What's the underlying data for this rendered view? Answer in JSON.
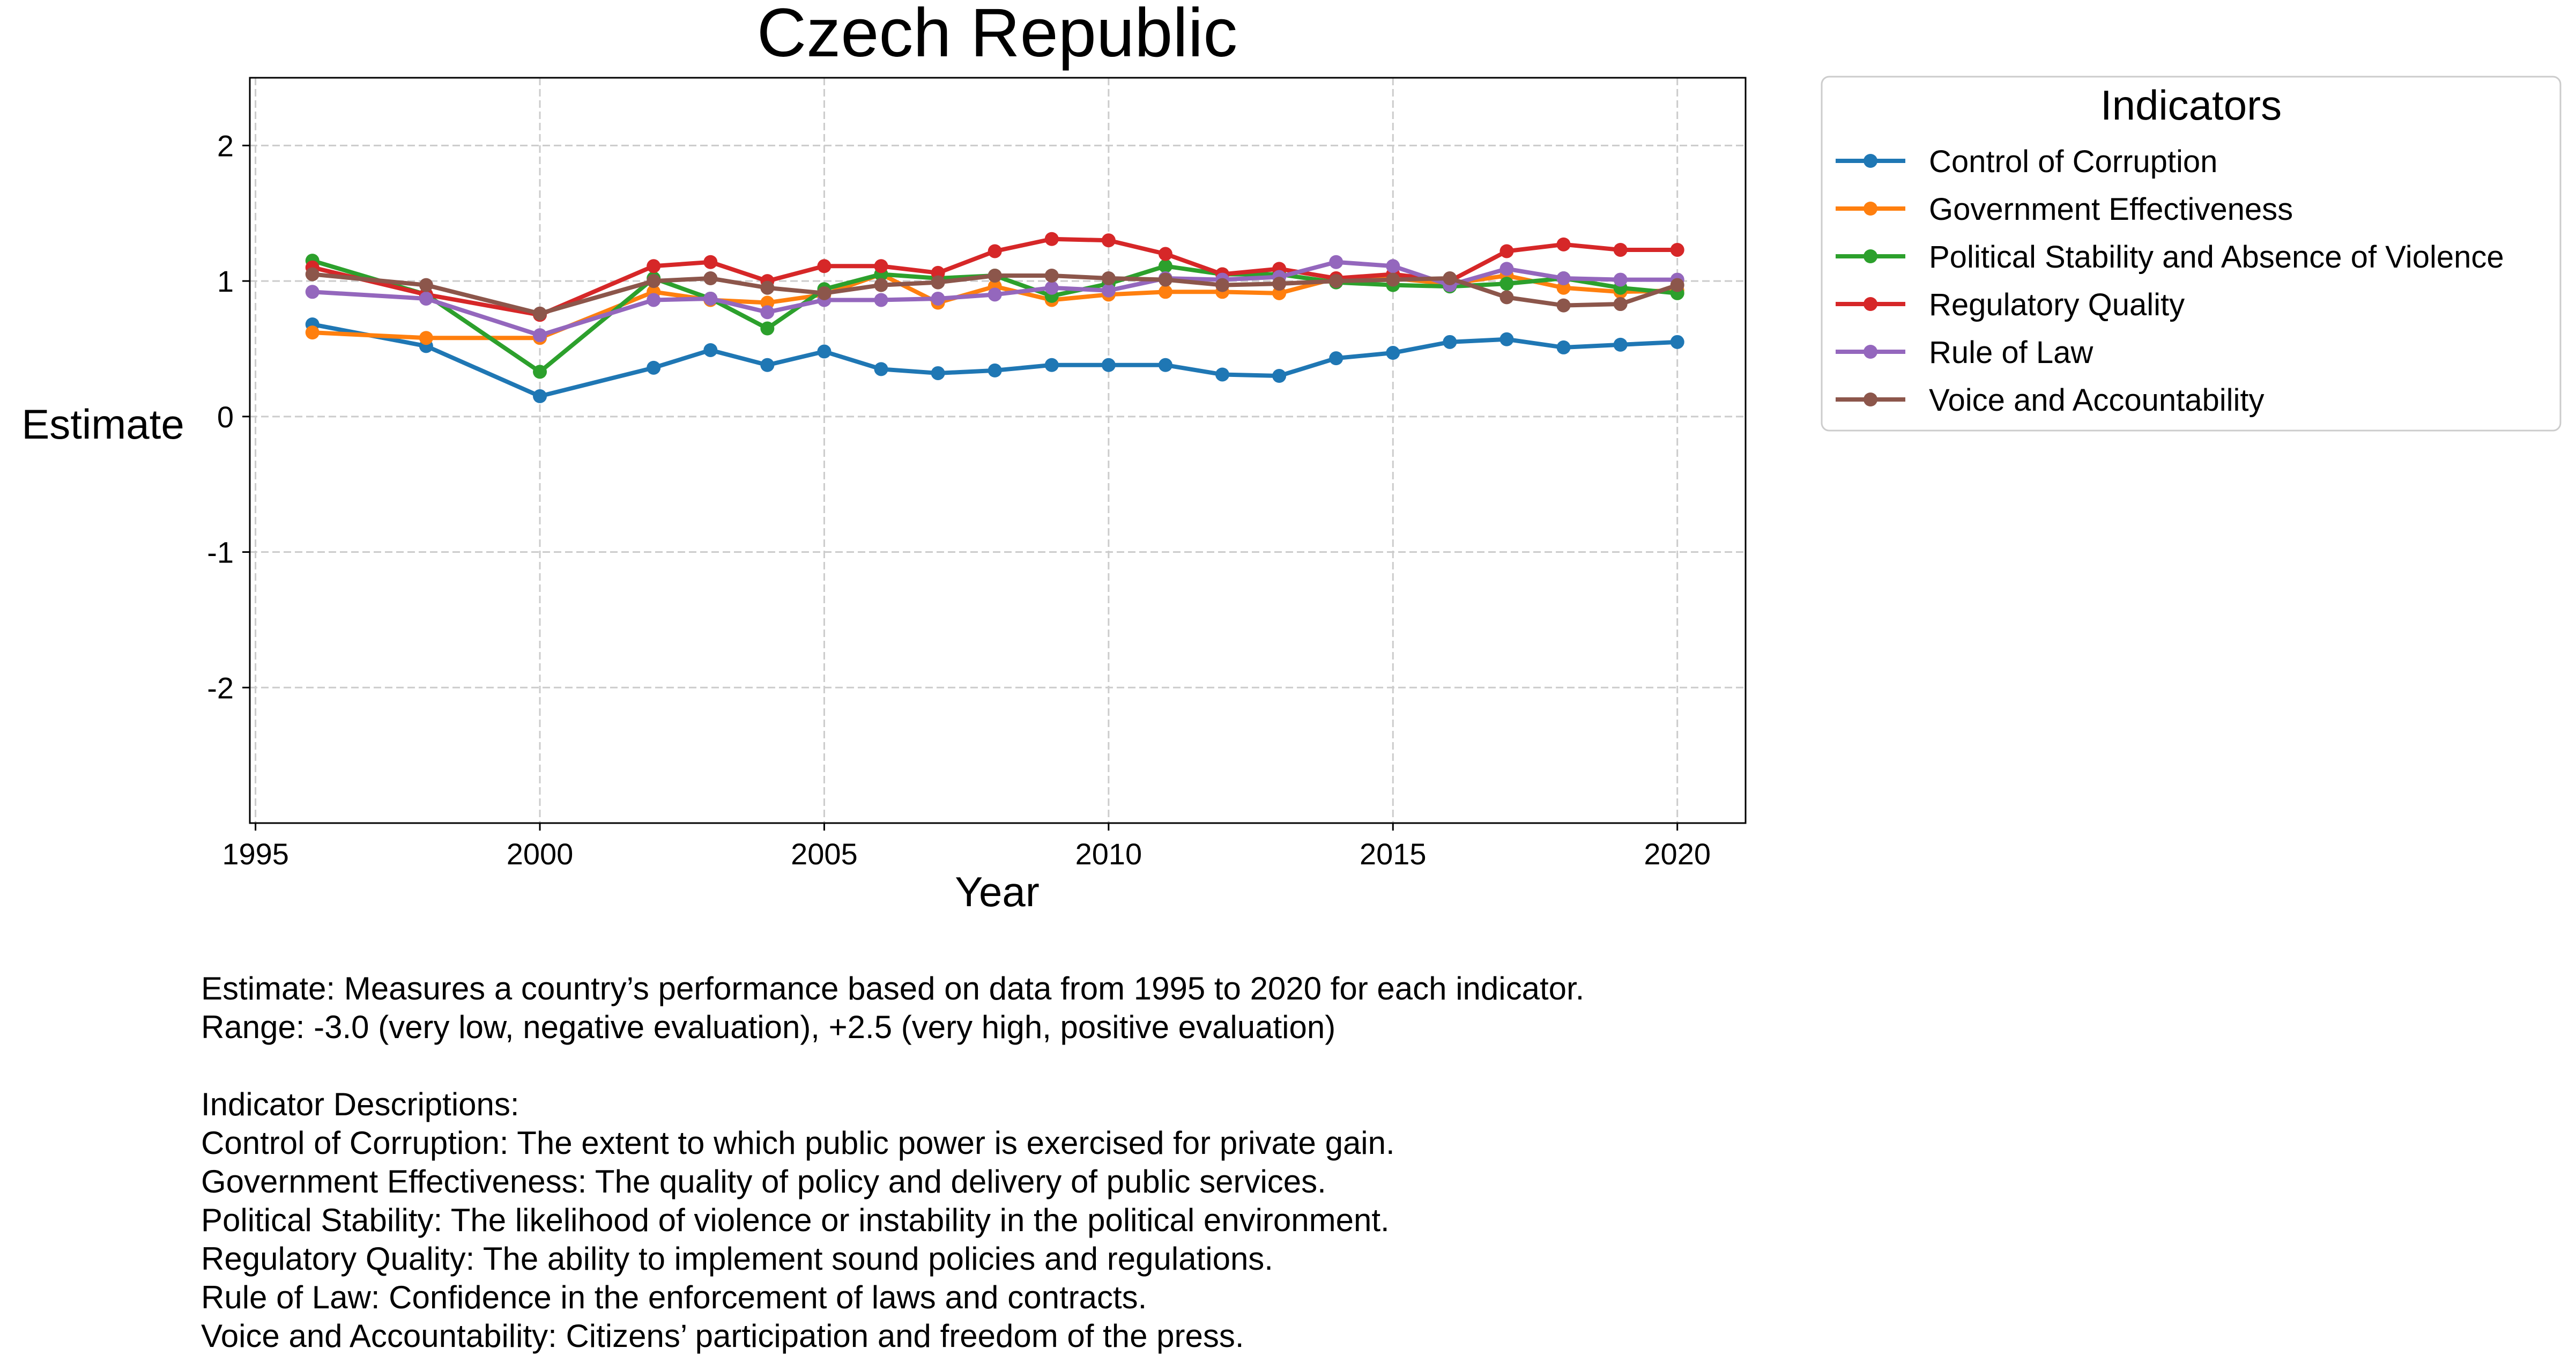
{
  "chart_data": {
    "type": "line",
    "title": "Czech Republic",
    "xlabel": "Year",
    "ylabel": "Estimate",
    "xlim": [
      1994.9,
      2021.2
    ],
    "ylim": [
      -3.0,
      2.5
    ],
    "xticks": [
      1995,
      2000,
      2005,
      2010,
      2015,
      2020
    ],
    "yticks": [
      -2,
      -1,
      0,
      1,
      2
    ],
    "grid": true,
    "legend_title": "Indicators",
    "legend_position": "outside-top-right",
    "x": [
      1996,
      1998,
      2000,
      2002,
      2003,
      2004,
      2005,
      2006,
      2007,
      2008,
      2009,
      2010,
      2011,
      2012,
      2013,
      2014,
      2015,
      2016,
      2017,
      2018,
      2019,
      2020
    ],
    "series": [
      {
        "name": "Control of Corruption",
        "color": "#1f77b4",
        "values": [
          0.68,
          0.52,
          0.15,
          0.36,
          0.49,
          0.38,
          0.48,
          0.35,
          0.32,
          0.34,
          0.38,
          0.38,
          0.38,
          0.31,
          0.3,
          0.43,
          0.47,
          0.55,
          0.57,
          0.51,
          0.53,
          0.55
        ]
      },
      {
        "name": "Government Effectiveness",
        "color": "#ff7f0e",
        "values": [
          0.62,
          0.58,
          0.58,
          0.92,
          0.86,
          0.84,
          0.9,
          1.05,
          0.84,
          0.96,
          0.86,
          0.9,
          0.92,
          0.92,
          0.91,
          1.02,
          1.02,
          0.98,
          1.04,
          0.95,
          0.92,
          0.93
        ]
      },
      {
        "name": "Political Stability and Absence of Violence",
        "color": "#2ca02c",
        "values": [
          1.15,
          0.9,
          0.33,
          1.02,
          0.87,
          0.65,
          0.94,
          1.05,
          1.02,
          1.04,
          0.89,
          0.98,
          1.11,
          1.05,
          1.05,
          0.99,
          0.97,
          0.96,
          0.98,
          1.02,
          0.95,
          0.91
        ]
      },
      {
        "name": "Regulatory Quality",
        "color": "#d62728",
        "values": [
          1.1,
          0.9,
          0.75,
          1.11,
          1.14,
          1.0,
          1.11,
          1.11,
          1.06,
          1.22,
          1.31,
          1.3,
          1.2,
          1.05,
          1.09,
          1.02,
          1.05,
          1.0,
          1.22,
          1.27,
          1.23,
          1.23
        ]
      },
      {
        "name": "Rule of Law",
        "color": "#9467bd",
        "values": [
          0.92,
          0.87,
          0.6,
          0.86,
          0.87,
          0.77,
          0.86,
          0.86,
          0.87,
          0.9,
          0.95,
          0.93,
          1.02,
          1.01,
          1.03,
          1.14,
          1.11,
          0.97,
          1.09,
          1.02,
          1.01,
          1.01
        ]
      },
      {
        "name": "Voice and Accountability",
        "color": "#8c564b",
        "values": [
          1.05,
          0.97,
          0.76,
          1.0,
          1.02,
          0.95,
          0.91,
          0.97,
          0.99,
          1.04,
          1.04,
          1.02,
          1.01,
          0.97,
          0.98,
          1.0,
          1.01,
          1.02,
          0.88,
          0.82,
          0.83,
          0.97
        ]
      }
    ]
  },
  "notes": {
    "estimate_line": "Estimate: Measures a country’s performance based on data from 1995 to 2020 for each indicator.",
    "range_line": "Range: -3.0 (very low, negative evaluation), +2.5 (very high, positive evaluation)",
    "descriptions_heading": "Indicator Descriptions:",
    "descriptions": [
      "Control of Corruption: The extent to which public power is exercised for private gain.",
      "Government Effectiveness: The quality of policy and delivery of public services.",
      "Political Stability: The likelihood of violence or instability in the political environment.",
      "Regulatory Quality: The ability to implement sound policies and regulations.",
      "Rule of Law: Confidence in the enforcement of laws and contracts.",
      "Voice and Accountability: Citizens’ participation and freedom of the press."
    ]
  }
}
